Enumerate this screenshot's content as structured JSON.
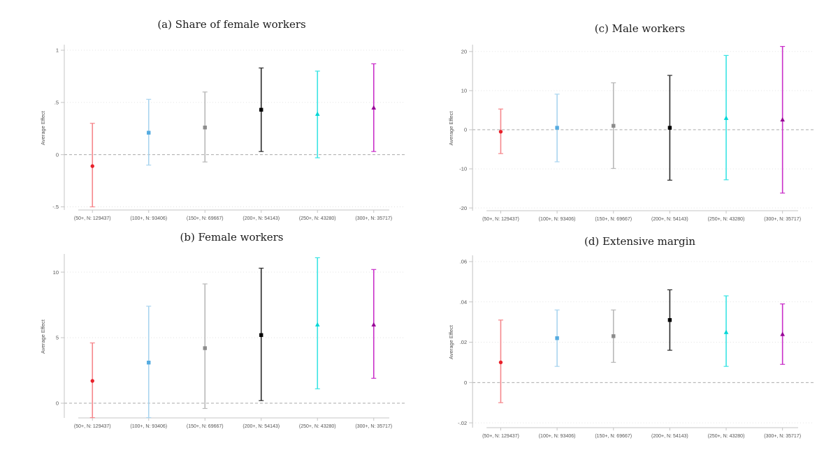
{
  "figure": {
    "ylabel": "Average Effect"
  },
  "style": {
    "marker_colors": [
      "#e8212b",
      "#55abe0",
      "#8c8c8c",
      "#000000",
      "#00d6d6",
      "#950095"
    ],
    "ci_colors": [
      "#f5868b",
      "#a9d4ef",
      "#b8b8b8",
      "#2b2b2b",
      "#3ae4e4",
      "#c92fc9"
    ],
    "marker_shapes": [
      "circle",
      "square",
      "square",
      "square",
      "triangle",
      "triangle"
    ],
    "grid_color": "#e0e0e0",
    "zero_line_color": "#9d9d9d",
    "axis_color": "#c4c4c4",
    "tick_text_color": "#555555"
  },
  "chart_data": [
    {
      "id": "a",
      "type": "scatter",
      "title": "(a) Share of female workers",
      "ylabel": "Average Effect",
      "categories": [
        "(50+, N: 129437)",
        "(100+, N: 93406)",
        "(150+, N: 69667)",
        "(200+, N: 54143)",
        "(250+, N: 43280)",
        "(300+, N: 35717)"
      ],
      "yticks": [
        {
          "value": 1,
          "label": "1"
        },
        {
          "value": 0.5,
          "label": ".5"
        },
        {
          "value": 0,
          "label": "0"
        },
        {
          "value": -0.5,
          "label": "-.5"
        }
      ],
      "ylim": [
        -0.53,
        1.04
      ],
      "zero_line": 0,
      "estimates": [
        -0.11,
        0.21,
        0.26,
        0.43,
        0.39,
        0.45
      ],
      "ci_low": [
        -0.5,
        -0.1,
        -0.07,
        0.03,
        -0.03,
        0.03
      ],
      "ci_high": [
        0.3,
        0.53,
        0.6,
        0.83,
        0.8,
        0.87
      ]
    },
    {
      "id": "c",
      "type": "scatter",
      "title": "(c) Male workers",
      "ylabel": "Average Effect",
      "categories": [
        "(50+, N: 129437)",
        "(100+, N: 93406)",
        "(150+, N: 69667)",
        "(200+, N: 54143)",
        "(250+, N: 43280)",
        "(300+, N: 35717)"
      ],
      "yticks": [
        {
          "value": 20,
          "label": "20"
        },
        {
          "value": 10,
          "label": "10"
        },
        {
          "value": 0,
          "label": "0"
        },
        {
          "value": -10,
          "label": "-10"
        },
        {
          "value": -20,
          "label": "-20"
        }
      ],
      "ylim": [
        -20.7,
        21.4
      ],
      "zero_line": 0,
      "estimates": [
        -0.5,
        0.5,
        1.0,
        0.5,
        3.0,
        2.6
      ],
      "ci_low": [
        -6.1,
        -8.2,
        -9.9,
        -12.9,
        -12.8,
        -16.2
      ],
      "ci_high": [
        5.3,
        9.1,
        12.0,
        13.9,
        19.0,
        21.3
      ]
    },
    {
      "id": "b",
      "type": "scatter",
      "title": "(b) Female workers",
      "ylabel": "Average Effect",
      "categories": [
        "(50+, N: 129437)",
        "(100+, N: 93406)",
        "(150+, N: 69667)",
        "(200+, N: 54143)",
        "(250+, N: 43280)",
        "(300+, N: 35717)"
      ],
      "yticks": [
        {
          "value": 10,
          "label": "10"
        },
        {
          "value": 5,
          "label": "5"
        },
        {
          "value": 0,
          "label": "0"
        }
      ],
      "ylim": [
        -1.12,
        11.28
      ],
      "zero_line": 0,
      "estimates": [
        1.7,
        3.1,
        4.2,
        5.2,
        6.0,
        6.0
      ],
      "ci_low": [
        -1.1,
        -1.1,
        -0.4,
        0.2,
        1.1,
        1.9
      ],
      "ci_high": [
        4.6,
        7.4,
        9.1,
        10.3,
        11.1,
        10.2
      ]
    },
    {
      "id": "d",
      "type": "scatter",
      "title": "(d) Extensive margin",
      "ylabel": "Average Effect",
      "categories": [
        "(50+, N: 129437)",
        "(100+, N: 93406)",
        "(150+, N: 69667)",
        "(200+, N: 54143)",
        "(250+, N: 43280)",
        "(300+, N: 35717)"
      ],
      "yticks": [
        {
          "value": 0.06,
          "label": ".06"
        },
        {
          "value": 0.04,
          "label": ".04"
        },
        {
          "value": 0.02,
          "label": ".02"
        },
        {
          "value": 0,
          "label": "0"
        },
        {
          "value": -0.02,
          "label": "-.02"
        }
      ],
      "ylim": [
        -0.0224,
        0.0624
      ],
      "zero_line": 0,
      "estimates": [
        0.01,
        0.022,
        0.023,
        0.031,
        0.025,
        0.024
      ],
      "ci_low": [
        -0.01,
        0.008,
        0.01,
        0.016,
        0.008,
        0.009
      ],
      "ci_high": [
        0.031,
        0.036,
        0.036,
        0.046,
        0.043,
        0.039
      ]
    }
  ]
}
